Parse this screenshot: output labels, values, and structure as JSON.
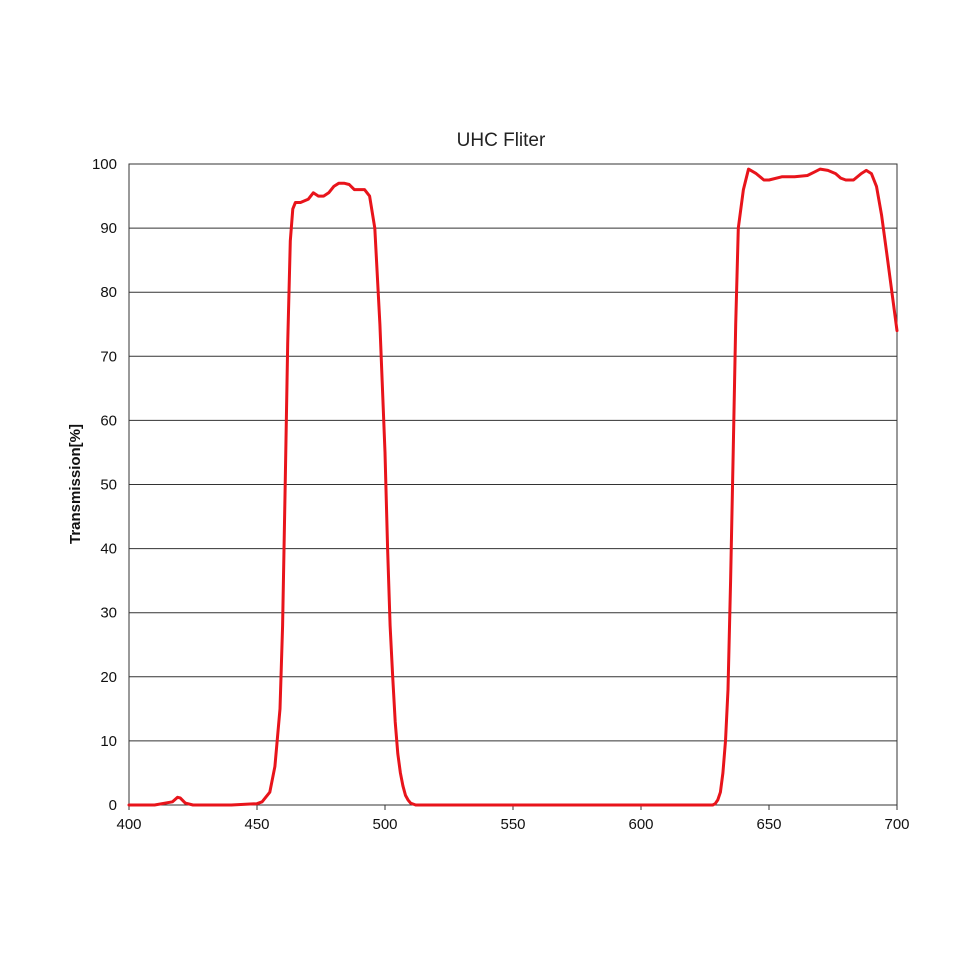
{
  "chart_data": {
    "type": "line",
    "title": "UHC Fliter",
    "xlabel": "",
    "ylabel": "Transmission[%]",
    "xlim": [
      400,
      700
    ],
    "ylim": [
      0,
      100
    ],
    "xticks": [
      400,
      450,
      500,
      550,
      600,
      650,
      700
    ],
    "yticks": [
      0,
      10,
      20,
      30,
      40,
      50,
      60,
      70,
      80,
      90,
      100
    ],
    "grid": "horizontal",
    "line_color": "#e8141b",
    "series": [
      {
        "x": [
          400,
          410,
          417,
          419,
          420,
          422,
          425,
          440,
          450,
          452,
          455,
          457,
          459,
          460,
          461,
          462,
          463,
          464,
          465,
          467,
          470,
          472,
          474,
          476,
          478,
          480,
          482,
          484,
          486,
          488,
          490,
          492,
          494,
          496,
          498,
          500,
          501,
          502,
          503,
          504,
          505,
          506,
          507,
          508,
          509,
          510,
          512,
          515,
          518,
          520,
          540,
          560,
          580,
          600,
          610,
          615,
          617,
          619,
          621,
          623,
          625,
          626,
          627,
          628,
          629,
          630,
          631,
          632,
          633,
          634,
          635,
          636,
          637,
          638,
          640,
          642,
          645,
          648,
          650,
          655,
          660,
          665,
          668,
          670,
          673,
          676,
          678,
          680,
          683,
          686,
          688,
          690,
          692,
          694,
          696,
          698,
          700
        ],
        "y": [
          0,
          0,
          0.5,
          1.2,
          1.1,
          0.3,
          0,
          0,
          0.2,
          0.5,
          2,
          6,
          15,
          28,
          50,
          72,
          88,
          93,
          94,
          94,
          94.5,
          95.5,
          95,
          95,
          95.5,
          96.5,
          97,
          97,
          96.8,
          96,
          96,
          96,
          95,
          90,
          75,
          55,
          40,
          28,
          20,
          13,
          8,
          5,
          3,
          1.5,
          0.8,
          0.3,
          0,
          0,
          0,
          0,
          0,
          0,
          0,
          0,
          0,
          0,
          0,
          0,
          0,
          0,
          0,
          0,
          0,
          0,
          0.2,
          0.8,
          2,
          5,
          10,
          18,
          35,
          55,
          75,
          90,
          96,
          99.2,
          98.5,
          97.5,
          97.5,
          98,
          98,
          98.2,
          98.8,
          99.2,
          99,
          98.5,
          97.8,
          97.5,
          97.5,
          98.5,
          99,
          98.5,
          96.5,
          92,
          86,
          80,
          74
        ]
      }
    ]
  }
}
